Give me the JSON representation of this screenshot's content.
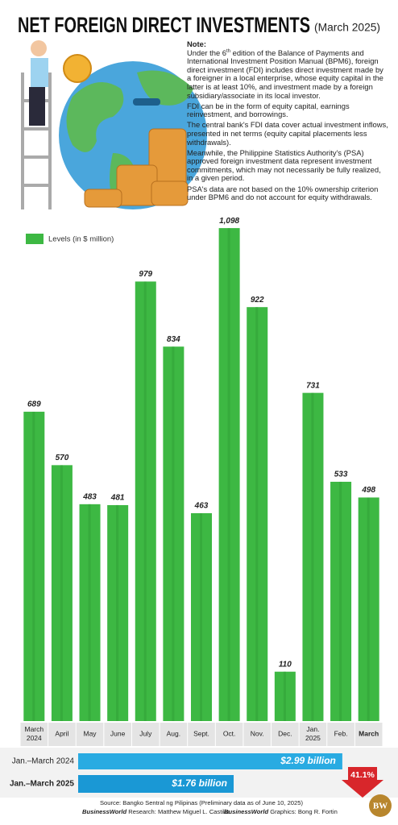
{
  "chart_data": {
    "type": "bar",
    "title": "NET FOREIGN DIRECT INVESTMENTS",
    "subtitle": "(March 2025)",
    "legend": "Levels (in $ million)",
    "color": "#3db843",
    "categories": [
      "March 2024",
      "April",
      "May",
      "June",
      "July",
      "Aug.",
      "Sept.",
      "Oct.",
      "Nov.",
      "Dec.",
      "Jan. 2025",
      "Feb.",
      "March"
    ],
    "values": [
      689,
      570,
      483,
      481,
      979,
      834,
      463,
      1098,
      922,
      110,
      731,
      533,
      498
    ],
    "value_labels": [
      "689",
      "570",
      "483",
      "481",
      "979",
      "834",
      "463",
      "1,098",
      "922",
      "110",
      "731",
      "533",
      "498"
    ],
    "ylim": [
      0,
      1100
    ]
  },
  "note": {
    "heading": "Note:",
    "first": [
      "Under the 6",
      "th",
      " edition of the Balance of Payments and International Investment Position Manual (BPM6), foreign direct investment (FDI) includes direct investment made by a foreigner in a local enterprise, whose equity capital in the latter is at least 10%, and investment made by a foreign subsidiary/associate in its local investor."
    ],
    "paragraphs": [
      "FDI can be in the form of equity capital, earnings reinvestment, and borrowings.",
      "The central bank's FDI data cover actual investment inflows, presented in net terms (equity capital placements less withdrawals).",
      "Meanwhile, the Philippine Statistics Authority's (PSA) approved foreign investment data represent investment commitments, which may not necessarily be fully realized, in a given period.",
      "PSA's data are not based on the 10% ownership criterion under BPM6 and do not account for equity withdrawals."
    ]
  },
  "comparison": {
    "xlim": [
      0,
      3
    ],
    "items": [
      {
        "label": "Jan.–March 2024",
        "value": 2.99,
        "value_label": "$2.99 billion",
        "color": "#29abe2"
      },
      {
        "label": "Jan.–March 2025",
        "value": 1.76,
        "value_label": "$1.76 billion",
        "color": "#1a98d5"
      }
    ],
    "change_label": "41.1%"
  },
  "footer": {
    "source": "Source: Bangko Sentral ng Pilipinas (Preliminary data as of June 10, 2025)",
    "research_label": "BusinessWorld",
    "research": " Research: Matthew Miguel L. Castillo",
    "graphics_label": "BusinessWorld",
    "graphics": " Graphics: Bong R. Fortin",
    "logo": "BW"
  }
}
